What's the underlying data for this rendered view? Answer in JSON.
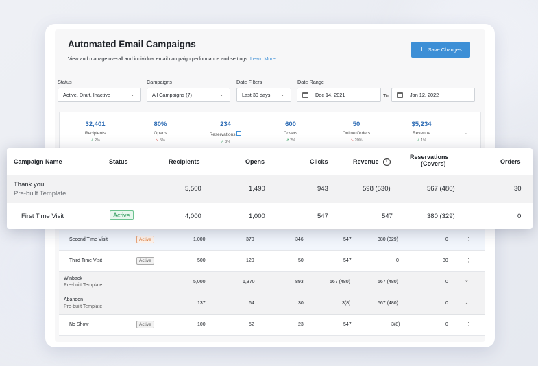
{
  "header": {
    "title": "Automated Email Campaigns",
    "subtitle": "View and manage overall and individual email campaign performance and settings.",
    "learn_more": "Learn More",
    "save_label": "Save Changes"
  },
  "filters": {
    "status_label": "Status",
    "status_value": "Active, Draft, Inactive",
    "campaigns_label": "Campaigns",
    "campaigns_value": "All Campaigns (7)",
    "date_filters_label": "Date Filters",
    "date_filters_value": "Last 30 days",
    "date_range_label": "Date Range",
    "date_from": "Dec 14, 2021",
    "to_label": "To",
    "date_to": "Jan 12, 2022"
  },
  "stats": [
    {
      "value": "32,401",
      "label": "Recipients",
      "trend": "2%",
      "dir": "up"
    },
    {
      "value": "80%",
      "label": "Opens",
      "trend": "5%",
      "dir": "down"
    },
    {
      "value": "234",
      "label": "Reservations",
      "trend": "3%",
      "dir": "up"
    },
    {
      "value": "600",
      "label": "Covers",
      "trend": "2%",
      "dir": "up"
    },
    {
      "value": "50",
      "label": "Online Orders",
      "trend": "20%",
      "dir": "down"
    },
    {
      "value": "$5,234",
      "label": "Revenue",
      "trend": "1%",
      "dir": "up"
    }
  ],
  "table": {
    "headers": {
      "name": "Campaign Name",
      "status": "Status",
      "recipients": "Recipients",
      "opens": "Opens",
      "clicks": "Clicks",
      "revenue": "Revenue",
      "reservations_1": "Reservations",
      "reservations_2": "(Covers)",
      "orders": "Orders"
    },
    "front_rows": [
      {
        "name": "Thank you",
        "sub": "Pre-built Template",
        "status": "",
        "recipients": "5,500",
        "opens": "1,490",
        "clicks": "943",
        "revenue": "598 (530)",
        "reservations": "567 (480)",
        "orders": "30"
      },
      {
        "name": "First Time Visit",
        "sub": "",
        "status": "Active",
        "recipients": "4,000",
        "opens": "1,000",
        "clicks": "547",
        "revenue": "547",
        "reservations": "380 (329)",
        "orders": "0"
      }
    ],
    "back_rows": [
      {
        "name": "Second Time Visit",
        "sub": "",
        "status": "Active",
        "recipients": "1,000",
        "opens": "370",
        "clicks": "346",
        "revenue": "547",
        "reservations": "380 (329)",
        "orders": "0",
        "action": "⋮"
      },
      {
        "name": "Third Time Visit",
        "sub": "",
        "status": "Active",
        "recipients": "500",
        "opens": "120",
        "clicks": "50",
        "revenue": "547",
        "reservations": "0",
        "orders": "30",
        "action": "⋮"
      },
      {
        "name": "Winback",
        "sub": "Pre-built Template",
        "status": "",
        "recipients": "5,000",
        "opens": "1,370",
        "clicks": "893",
        "revenue": "567 (480)",
        "reservations": "567 (480)",
        "orders": "0",
        "action": "⌄"
      },
      {
        "name": "Abandon",
        "sub": "Pre-built Template",
        "status": "",
        "recipients": "137",
        "opens": "64",
        "clicks": "30",
        "revenue": "3(8)",
        "reservations": "567 (480)",
        "orders": "0",
        "action": "⌃"
      },
      {
        "name": "No Show",
        "sub": "",
        "status": "Active",
        "recipients": "100",
        "opens": "52",
        "clicks": "23",
        "revenue": "547",
        "reservations": "3(8)",
        "orders": "0",
        "action": "⋮"
      }
    ]
  },
  "colors": {
    "accent": "#3d8fd6",
    "stat_value": "#2f6db5",
    "active_green": "#2b9a5a",
    "active_orange": "#e07d3b"
  }
}
